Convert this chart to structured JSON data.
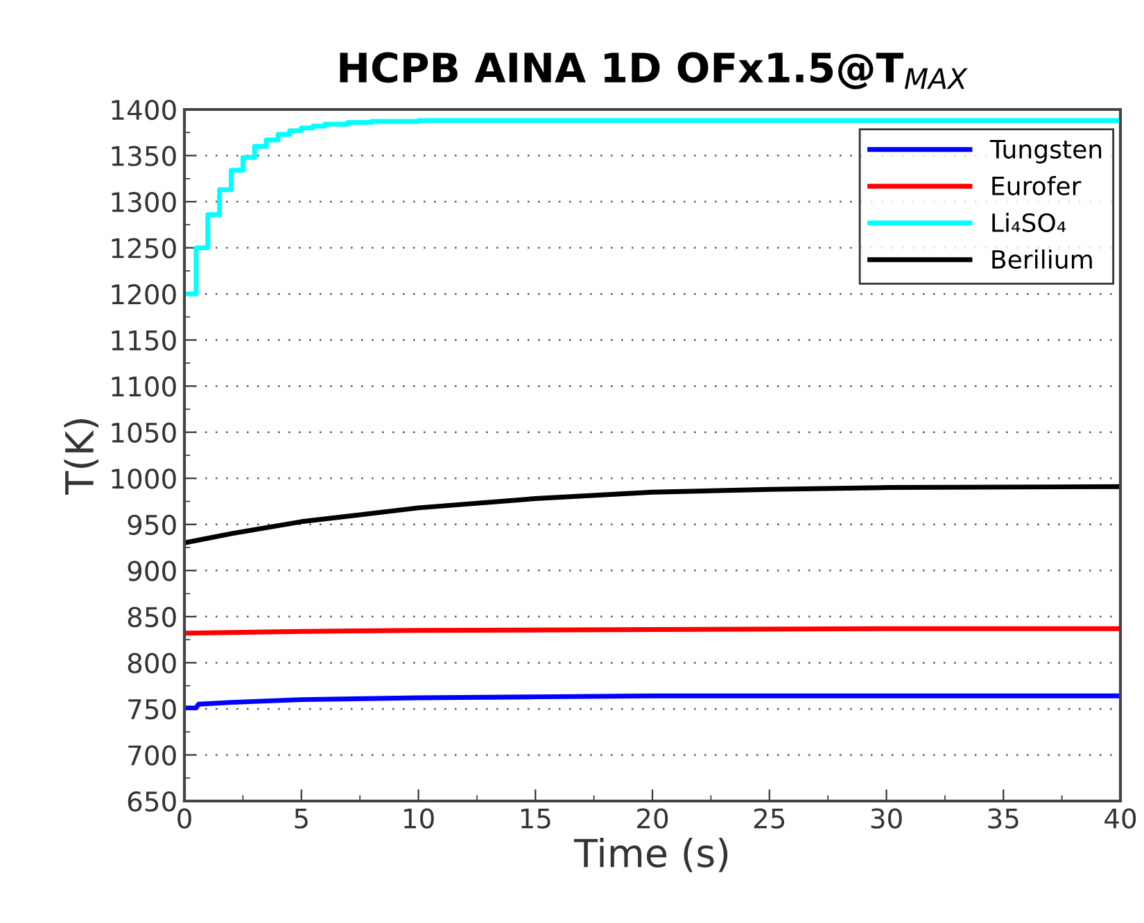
{
  "chart_data": {
    "type": "line",
    "title": "HCPB AINA 1D OFx1.5@T$_{MAX}$",
    "xlabel": "Time (s)",
    "ylabel": "T(K)",
    "xlim": [
      0,
      40
    ],
    "ylim": [
      650,
      1400
    ],
    "xticks": [
      0,
      5,
      10,
      15,
      20,
      25,
      30,
      35,
      40
    ],
    "yticks": [
      650,
      700,
      750,
      800,
      850,
      900,
      950,
      1000,
      1050,
      1100,
      1150,
      1200,
      1250,
      1300,
      1350,
      1400
    ],
    "grid": "y",
    "legend": "top right",
    "series": [
      {
        "name": "Tungsten",
        "color": "#0000ff",
        "x": [
          0,
          0.5,
          0.6,
          2,
          5,
          10,
          15,
          20,
          30,
          40
        ],
        "values": [
          751,
          751,
          755,
          757,
          760,
          762,
          763,
          764,
          764,
          764
        ]
      },
      {
        "name": "Eurofer",
        "color": "#ff0000",
        "x": [
          0,
          5,
          10,
          20,
          30,
          40
        ],
        "values": [
          832,
          834,
          835,
          836,
          837,
          837
        ]
      },
      {
        "name": "Li₄SO₄",
        "color": "#00ffff",
        "type": "step",
        "x": [
          0,
          0.5,
          1,
          1.5,
          2,
          2.5,
          3,
          3.5,
          4,
          4.5,
          5,
          5.5,
          6,
          7,
          8,
          10,
          40
        ],
        "values": [
          1200,
          1250,
          1286,
          1313,
          1334,
          1348,
          1360,
          1367,
          1373,
          1377,
          1380,
          1382,
          1384,
          1386,
          1387,
          1388,
          1388
        ]
      },
      {
        "name": "Berilium",
        "color": "#000000",
        "x": [
          0,
          2,
          5,
          10,
          15,
          20,
          25,
          30,
          40
        ],
        "values": [
          930,
          940,
          953,
          968,
          978,
          985,
          988,
          990,
          991
        ]
      }
    ]
  }
}
